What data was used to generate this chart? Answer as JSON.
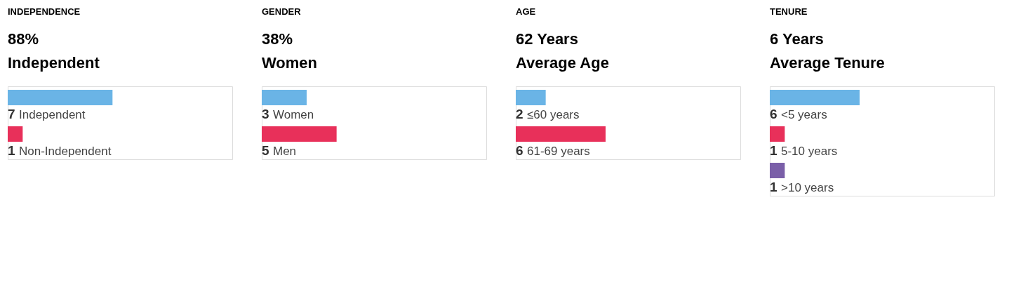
{
  "chart_data": [
    {
      "type": "bar",
      "orientation": "horizontal",
      "title": "INDEPENDENCE",
      "subtitle": "88%\nIndependent",
      "categories": [
        "Independent",
        "Non-Independent"
      ],
      "values": [
        7,
        1
      ],
      "colors": [
        "#6ab4e6",
        "#e8305a"
      ],
      "data_labels": true,
      "xlim": [
        0,
        15
      ]
    },
    {
      "type": "bar",
      "orientation": "horizontal",
      "title": "GENDER",
      "subtitle": "38%\nWomen",
      "categories": [
        "Women",
        "Men"
      ],
      "values": [
        3,
        5
      ],
      "colors": [
        "#6ab4e6",
        "#e8305a"
      ],
      "data_labels": true,
      "xlim": [
        0,
        15
      ]
    },
    {
      "type": "bar",
      "orientation": "horizontal",
      "title": "AGE",
      "subtitle": "62 Years\nAverage Age",
      "categories": [
        "≤60 years",
        "61-69 years"
      ],
      "values": [
        2,
        6
      ],
      "colors": [
        "#6ab4e6",
        "#e8305a"
      ],
      "data_labels": true,
      "xlim": [
        0,
        15
      ]
    },
    {
      "type": "bar",
      "orientation": "horizontal",
      "title": "TENURE",
      "subtitle": "6 Years\nAverage Tenure",
      "categories": [
        "<5 years",
        "5-10 years",
        ">10 years"
      ],
      "values": [
        6,
        1,
        1
      ],
      "colors": [
        "#6ab4e6",
        "#e8305a",
        "#7a5fa8"
      ],
      "data_labels": true,
      "xlim": [
        0,
        15
      ]
    }
  ]
}
